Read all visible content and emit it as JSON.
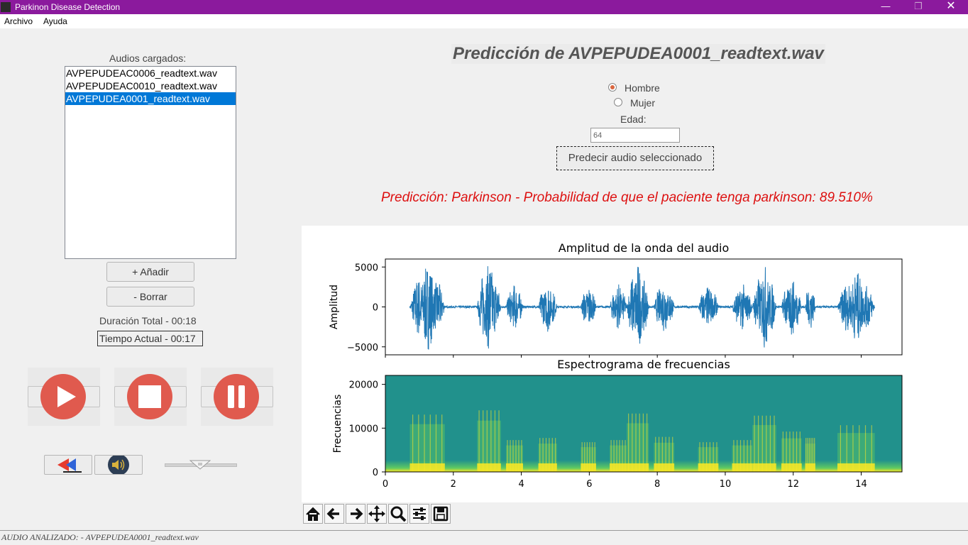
{
  "window": {
    "title": "Parkinon Disease Detection"
  },
  "menu": [
    "Archivo",
    "Ayuda"
  ],
  "left_panel": {
    "list_label": "Audios cargados:",
    "files": [
      "AVPEPUDEAC0006_readtext.wav",
      "AVPEPUDEAC0010_readtext.wav",
      "AVPEPUDEA0001_readtext.wav"
    ],
    "selected_index": 2,
    "add_label": "+ Añadir",
    "delete_label": "- Borrar",
    "total_duration": "Duración Total - 00:18",
    "current_time": "Tiempo Actual  - 00:17",
    "volume_level": 0.5
  },
  "right_panel": {
    "title": "Predicción de AVPEPUDEA0001_readtext.wav",
    "gender_options": [
      "Hombre",
      "Mujer"
    ],
    "gender_selected": "Hombre",
    "age_label": "Edad:",
    "age_value": "64",
    "predict_button": "Predecir audio seleccionado",
    "result": "Predicción: Parkinson - Probabilidad de que el paciente tenga parkinson: 89.510%",
    "accent_color": "#dd1111"
  },
  "chart_data": [
    {
      "type": "line",
      "title": "Amplitud de la onda del audio",
      "ylabel": "Amplitud",
      "xlabel": "",
      "xlim": [
        0,
        15.2
      ],
      "ylim": [
        -6000,
        6000
      ],
      "yticks": [
        "5000",
        "0",
        "−5000"
      ],
      "color": "#1f77b4",
      "bursts": [
        {
          "start": 0.72,
          "end": 1.75,
          "amp": 5400
        },
        {
          "start": 2.7,
          "end": 3.4,
          "amp": 5800
        },
        {
          "start": 3.55,
          "end": 4.05,
          "amp": 3000
        },
        {
          "start": 4.5,
          "end": 5.05,
          "amp": 3200
        },
        {
          "start": 5.75,
          "end": 6.2,
          "amp": 2800
        },
        {
          "start": 6.6,
          "end": 7.1,
          "amp": 3000
        },
        {
          "start": 7.1,
          "end": 7.75,
          "amp": 5500
        },
        {
          "start": 7.9,
          "end": 8.5,
          "amp": 3300
        },
        {
          "start": 9.2,
          "end": 9.8,
          "amp": 2800
        },
        {
          "start": 10.2,
          "end": 10.8,
          "amp": 3000
        },
        {
          "start": 10.8,
          "end": 11.5,
          "amp": 5300
        },
        {
          "start": 11.65,
          "end": 12.25,
          "amp": 3800
        },
        {
          "start": 12.35,
          "end": 12.65,
          "amp": 3200
        },
        {
          "start": 13.3,
          "end": 14.4,
          "amp": 4400
        }
      ]
    },
    {
      "type": "heatmap",
      "title": "Espectrograma de frecuencias",
      "ylabel": "Frecuencias",
      "xlabel": "",
      "xlim": [
        0,
        15.2
      ],
      "ylim": [
        0,
        22050
      ],
      "xticks": [
        "0",
        "2",
        "4",
        "6",
        "8",
        "10",
        "12",
        "14"
      ],
      "yticks": [
        "0",
        "10000",
        "20000"
      ],
      "colormap": [
        "#3b528b",
        "#21918c",
        "#5ec962",
        "#fde725"
      ]
    }
  ],
  "toolbar": [
    "home-icon",
    "back-icon",
    "forward-icon",
    "pan-icon",
    "zoom-icon",
    "configure-icon",
    "save-icon"
  ],
  "status": "AUDIO ANALIZADO: - AVPEPUDEA0001_readtext.wav"
}
